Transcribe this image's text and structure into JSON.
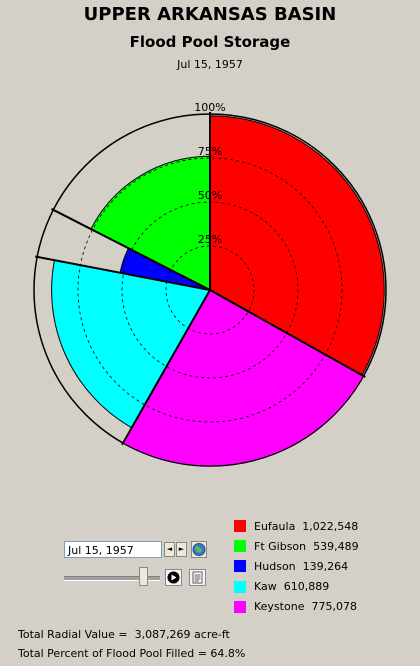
{
  "chart_data": {
    "type": "radial-pie",
    "title": "UPPER ARKANSAS BASIN",
    "subtitle": "Flood Pool Storage",
    "date": "Jul 15, 1957",
    "ring_labels": [
      "25%",
      "50%",
      "75%",
      "100%"
    ],
    "ring_values": [
      25,
      50,
      75,
      100
    ],
    "series": [
      {
        "name": "Eufaula",
        "value_label": "1,022,548",
        "storage": 1022548,
        "percent_filled": 99,
        "color": "#ff0000"
      },
      {
        "name": "Ft Gibson",
        "value_label": "539,489",
        "storage": 539489,
        "percent_filled": 76,
        "color": "#00ff00"
      },
      {
        "name": "Hudson",
        "value_label": "139,264",
        "storage": 139264,
        "percent_filled": 52,
        "color": "#0000ff"
      },
      {
        "name": "Kaw",
        "value_label": "610,889",
        "storage": 610889,
        "percent_filled": 90,
        "color": "#00ffff"
      },
      {
        "name": "Keystone",
        "value_label": "775,078",
        "storage": 775078,
        "percent_filled": 100,
        "color": "#ff00ff"
      }
    ],
    "order_clockwise_from_top": [
      "Eufaula",
      "Keystone",
      "Kaw",
      "Hudson",
      "Ft Gibson"
    ]
  },
  "controls": {
    "date_value": "Jul 15, 1957",
    "spin_left": "◄",
    "spin_right": "►",
    "slider_value": 0.82
  },
  "footer": {
    "total_radial": "Total Radial Value =  3,087,269 acre-ft",
    "total_percent": "Total Percent of Flood Pool Filled = 64.8%"
  },
  "colors": {
    "background": "#d4d0c8",
    "ring_line": "#000000"
  }
}
